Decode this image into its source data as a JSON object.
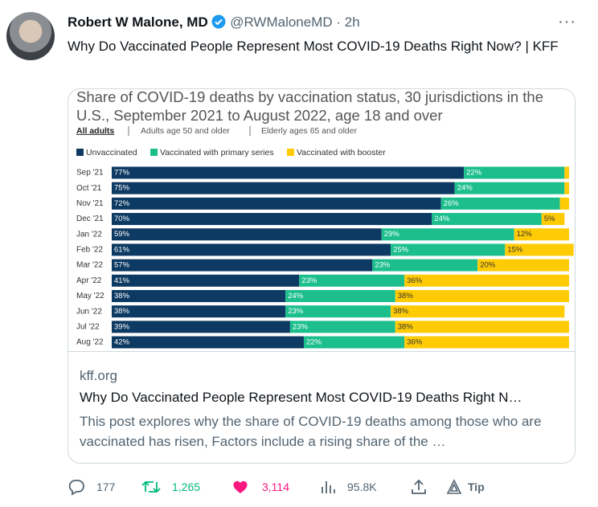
{
  "tweet": {
    "author_name": "Robert W Malone, MD",
    "handle": "@RWMaloneMD",
    "separator": "·",
    "time": "2h",
    "text": "Why Do Vaccinated People Represent Most COVID-19 Deaths Right Now? | KFF"
  },
  "chart_data": {
    "type": "bar",
    "orientation": "horizontal",
    "stacked": true,
    "title": "Share of COVID-19 deaths by vaccination status, 30 jurisdictions in the U.S., September 2021 to August 2022, age 18 and over",
    "tabs": [
      "All adults",
      "Adults age 50 and older",
      "Elderly ages 65 and older"
    ],
    "categories": [
      "Sep '21",
      "Oct '21",
      "Nov '21",
      "Dec '21",
      "Jan '22",
      "Feb '22",
      "Mar '22",
      "Apr '22",
      "May '22",
      "Jun '22",
      "Jul '22",
      "Aug '22"
    ],
    "xlim": [
      0,
      100
    ],
    "series": [
      {
        "name": "Unvaccinated",
        "color": "#0d3a63",
        "label_color": "#ffffff",
        "values": [
          77,
          75,
          72,
          70,
          59,
          61,
          57,
          41,
          38,
          38,
          39,
          42
        ],
        "value_labels": [
          "77%",
          "75%",
          "72%",
          "70%",
          "59%",
          "61%",
          "57%",
          "41%",
          "38%",
          "38%",
          "39%",
          "42%"
        ]
      },
      {
        "name": "Vaccinated with primary series",
        "color": "#1cbf8c",
        "label_color": "#ffffff",
        "values": [
          22,
          24,
          26,
          24,
          29,
          25,
          23,
          23,
          24,
          23,
          23,
          22
        ],
        "value_labels": [
          "22%",
          "24%",
          "26%",
          "24%",
          "29%",
          "25%",
          "23%",
          "23%",
          "24%",
          "23%",
          "23%",
          "22%"
        ]
      },
      {
        "name": "Vaccinated with booster",
        "color": "#ffcb05",
        "label_color": "#333333",
        "values": [
          1,
          1,
          2,
          5,
          12,
          15,
          20,
          36,
          38,
          38,
          38,
          36
        ],
        "value_labels": [
          null,
          null,
          null,
          "5%",
          "12%",
          "15%",
          "20%",
          "36%",
          "38%",
          "38%",
          "38%",
          "36%"
        ]
      }
    ]
  },
  "card": {
    "domain": "kff.org",
    "title": "Why Do Vaccinated People Represent Most COVID-19 Deaths Right N…",
    "description": "This post explores why the share of COVID-19 deaths among those who are vaccinated has risen, Factors include a rising share of the …"
  },
  "actions": {
    "replies": "177",
    "retweets": "1,265",
    "likes": "3,114",
    "views": "95.8K",
    "tip": "Tip"
  }
}
